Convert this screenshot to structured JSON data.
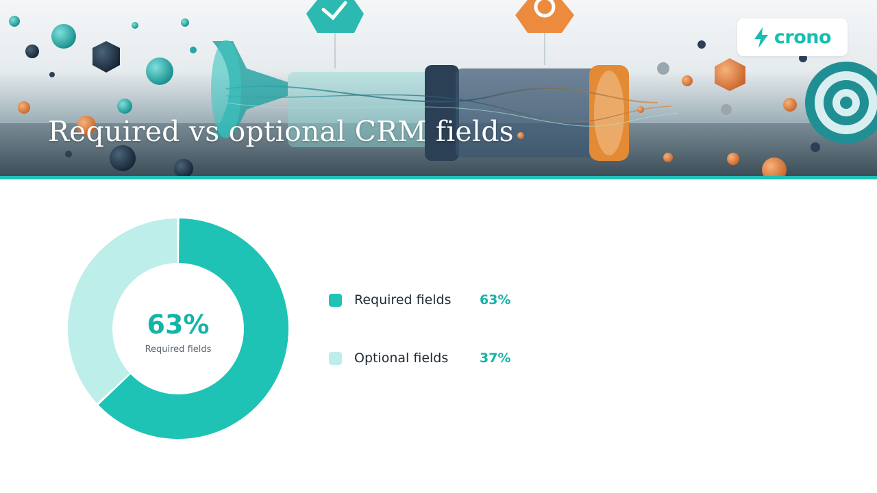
{
  "banner": {
    "title": "Required vs optional CRM fields",
    "logo_text": "crono"
  },
  "colors": {
    "primary": "#1ec3b6",
    "secondary": "#bdeeea",
    "accent_bar": "#1fc0b5",
    "value_text": "#16b3a8"
  },
  "chart_data": {
    "type": "pie",
    "categories": [
      "Required fields",
      "Optional fields"
    ],
    "values": [
      63,
      37
    ],
    "value_labels": [
      "63%",
      "37%"
    ],
    "colors": [
      "#1ec3b6",
      "#bdeeea"
    ],
    "center_value": "63%",
    "center_label": "Required fields",
    "unit": "%",
    "legend_placement": "right"
  }
}
